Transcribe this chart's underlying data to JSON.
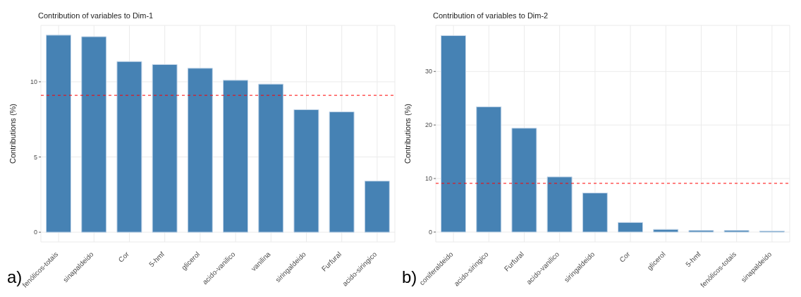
{
  "chart_data": [
    {
      "type": "bar",
      "title": "Contribution of variables to Dim-1",
      "ylabel": "Contributions (%)",
      "annotations": [
        "a)"
      ],
      "categories": [
        "fenólicos-totais",
        "sinapaldeido",
        "Cor",
        "5-hmf",
        "glicerol",
        "acido-vanilico",
        "vanilina",
        "siringaldeido",
        "Furfural",
        "acido-siringico"
      ],
      "values": [
        13.1,
        13.0,
        11.35,
        11.15,
        10.9,
        10.1,
        9.85,
        8.15,
        8.0,
        3.4
      ],
      "color": "#4682b4",
      "ylim": [
        -0.65,
        13.75
      ],
      "yticks": [
        0,
        5,
        10
      ],
      "grid": true,
      "ref_lines": [
        {
          "axis": "y",
          "value": 9.1,
          "color": "#ff0000",
          "line_style": "dashed"
        }
      ]
    },
    {
      "type": "bar",
      "title": "Contribution of variables to Dim-2",
      "ylabel": "Contributions (%)",
      "annotations": [
        "b)"
      ],
      "categories": [
        "coniferaldeido",
        "acido-siringico",
        "Furfural",
        "acido-vanilico",
        "siringaldeido",
        "Cor",
        "glicerol",
        "5-hmf",
        "fenólicos-totais",
        "sinapaldeido"
      ],
      "values": [
        36.7,
        23.4,
        19.4,
        10.3,
        7.3,
        1.8,
        0.5,
        0.3,
        0.3,
        0.2
      ],
      "color": "#4682b4",
      "ylim": [
        -1.85,
        38.6
      ],
      "yticks": [
        0,
        10,
        20,
        30
      ],
      "grid": true,
      "ref_lines": [
        {
          "axis": "y",
          "value": 9.1,
          "color": "#ff0000",
          "line_style": "dashed"
        }
      ]
    }
  ]
}
